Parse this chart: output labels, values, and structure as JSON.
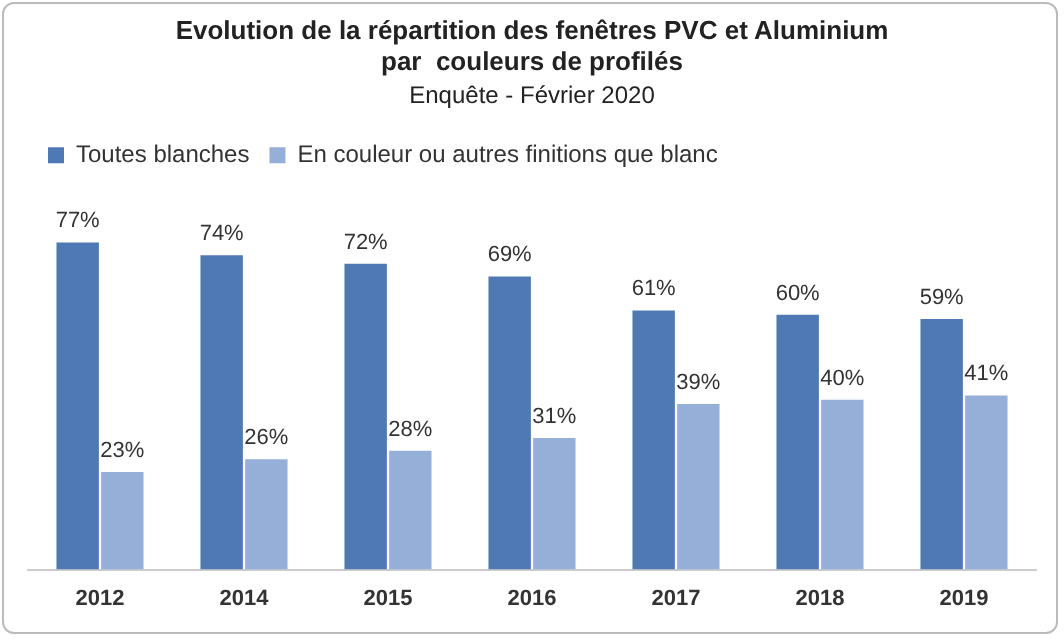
{
  "chart_data": {
    "type": "bar",
    "title": "Evolution de la répartition des fenêtres PVC et Aluminium\npar  couleurs de profilés",
    "subtitle": "Enquête - Février 2020",
    "categories": [
      "2012",
      "2014",
      "2015",
      "2016",
      "2017",
      "2018",
      "2019"
    ],
    "series": [
      {
        "name": "Toutes blanches",
        "color": "#4f79b4",
        "values": [
          77,
          74,
          72,
          69,
          61,
          60,
          59
        ],
        "value_labels": [
          "77%",
          "74%",
          "72%",
          "69%",
          "61%",
          "60%",
          "59%"
        ]
      },
      {
        "name": "En couleur ou autres finitions que blanc",
        "color": "#95afd8",
        "values": [
          23,
          26,
          28,
          31,
          39,
          40,
          41
        ],
        "value_labels": [
          "23%",
          "26%",
          "28%",
          "31%",
          "39%",
          "40%",
          "41%"
        ]
      }
    ],
    "legend": "top left",
    "tick_labels": "x",
    "grid": false
  }
}
